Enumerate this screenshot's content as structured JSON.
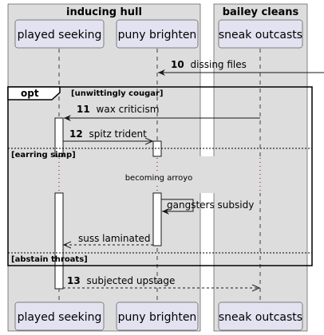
{
  "boxes": [
    {
      "id": "inducing-hull",
      "title": "inducing hull"
    },
    {
      "id": "bailey-cleans",
      "title": "bailey cleans"
    }
  ],
  "participants": [
    {
      "id": "played-seeking",
      "label": "played seeking"
    },
    {
      "id": "puny-brighten",
      "label": "puny brighten"
    },
    {
      "id": "sneak-outcasts",
      "label": "sneak outcasts"
    }
  ],
  "messages": [
    {
      "num": "10",
      "text": "dissing files",
      "from": "external",
      "to": "puny-brighten",
      "style": "solid"
    },
    {
      "num": "11",
      "text": "wax criticism",
      "from": "sneak-outcasts",
      "to": "played-seeking",
      "style": "solid"
    },
    {
      "num": "12",
      "text": "spitz trident",
      "from": "played-seeking",
      "to": "puny-brighten",
      "style": "solid"
    },
    {
      "num": "",
      "text": "gangsters subsidy",
      "from": "puny-brighten",
      "to": "puny-brighten",
      "style": "solid"
    },
    {
      "num": "",
      "text": "suss laminated",
      "from": "puny-brighten",
      "to": "played-seeking",
      "style": "dashed"
    },
    {
      "num": "13",
      "text": "subjected upstage",
      "from": "played-seeking",
      "to": "sneak-outcasts",
      "style": "dashed"
    }
  ],
  "fragment": {
    "keyword": "opt",
    "sections": [
      {
        "guard": "[unwittingly cougar]"
      },
      {
        "guard": "[earring simp]"
      },
      {
        "guard": "[abstain throats]"
      }
    ]
  },
  "delay": {
    "text": "becoming arroyo"
  },
  "colors": {
    "box_fill": "#dddddd",
    "participant_fill": "#e2e2f0",
    "participant_stroke": "#181818",
    "line": "#181818"
  }
}
